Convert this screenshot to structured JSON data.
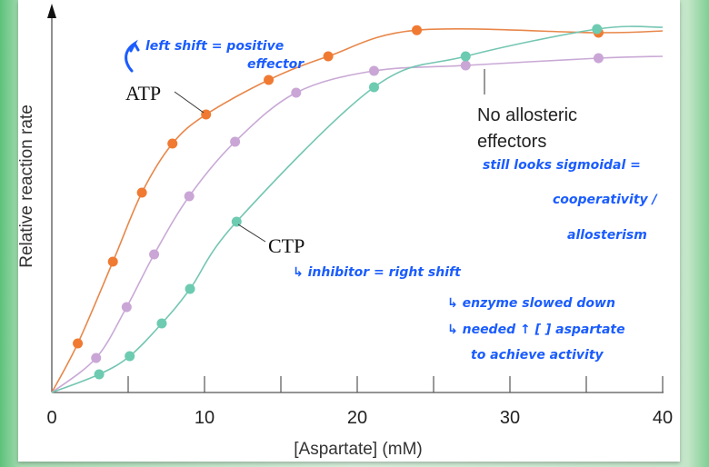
{
  "chart_data": {
    "type": "line",
    "xlabel": "[Aspartate] (mM)",
    "ylabel": "Relative reaction rate",
    "xlim": [
      0,
      40
    ],
    "ylim": [
      0,
      1.0
    ],
    "xticks": [
      0,
      10,
      20,
      30,
      40
    ],
    "xminor_ticks": [
      5,
      15,
      25,
      35
    ],
    "grid": false,
    "series": [
      {
        "name": "ATP",
        "color": "#f07a32",
        "line_color": "#e8874a",
        "x": [
          1.7,
          4.0,
          5.9,
          7.9,
          10.1,
          14.2,
          18.1,
          23.9,
          35.8
        ],
        "y": [
          0.135,
          0.36,
          0.55,
          0.685,
          0.765,
          0.86,
          0.925,
          0.997,
          0.99
        ]
      },
      {
        "name": "No allosteric effectors",
        "color": "#caa6d6",
        "line_color": "#c9a9d6",
        "x": [
          2.9,
          4.9,
          6.7,
          9.0,
          12.0,
          16.0,
          21.1,
          27.1,
          35.8
        ],
        "y": [
          0.095,
          0.235,
          0.38,
          0.54,
          0.69,
          0.825,
          0.885,
          0.9,
          0.92
        ]
      },
      {
        "name": "CTP",
        "color": "#6ccbb0",
        "line_color": "#74c6b2",
        "x": [
          3.1,
          5.1,
          7.2,
          9.05,
          12.1,
          21.1,
          27.1,
          35.7
        ],
        "y": [
          0.05,
          0.1,
          0.19,
          0.285,
          0.47,
          0.84,
          0.925,
          1.0
        ]
      }
    ],
    "labels": {
      "atp": "ATP",
      "ctp": "CTP",
      "none_line1": "No allosteric",
      "none_line2": "effectors"
    },
    "annotations": {
      "left_shift_1": "left shift = positive",
      "left_shift_2": "effector",
      "sigmoidal_1": "still looks sigmoidal =",
      "sigmoidal_2": "cooperativity /",
      "sigmoidal_3": "allosterism",
      "inhibitor": "↳ inhibitor = right shift",
      "slowed": "↳ enzyme slowed down",
      "needed_1": "↳ needed ↑ [ ] aspartate",
      "needed_2": "to achieve activity",
      "color": "#1a5cff"
    }
  }
}
